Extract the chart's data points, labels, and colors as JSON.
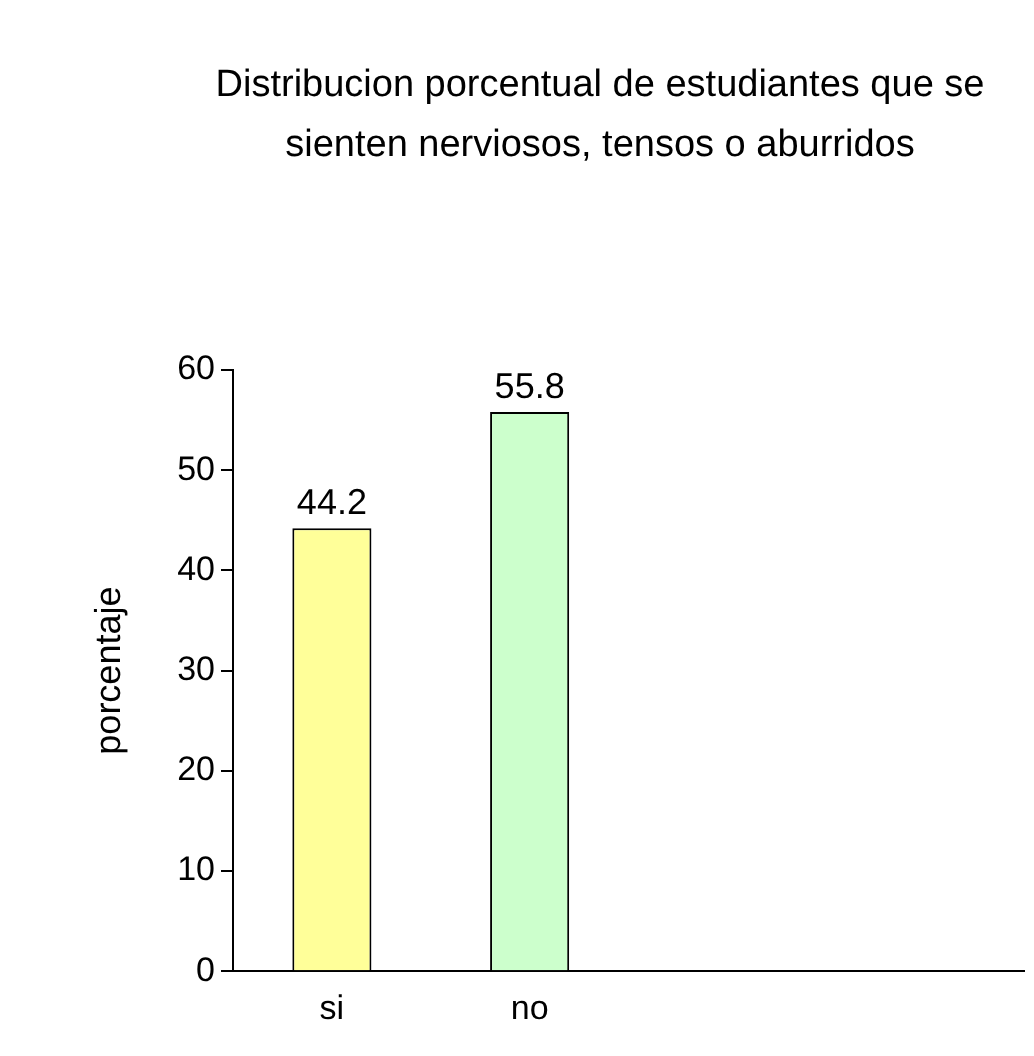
{
  "chart_data": {
    "type": "bar",
    "title": "Distribucion porcentual de estudiantes que se sienten nerviosos, tensos o aburridos",
    "ylabel": "porcentaje",
    "categories": [
      "si",
      "no",
      null,
      null
    ],
    "values": [
      44.2,
      55.8,
      null,
      null
    ],
    "colors": [
      "#ffff99",
      "#ccffcc",
      "#ffff99",
      "#ccffcc"
    ],
    "ylim": [
      0,
      60
    ],
    "yticks": [
      0,
      10,
      20,
      30,
      40,
      50,
      60
    ],
    "grid": false,
    "legend": false,
    "data_labels": true
  }
}
